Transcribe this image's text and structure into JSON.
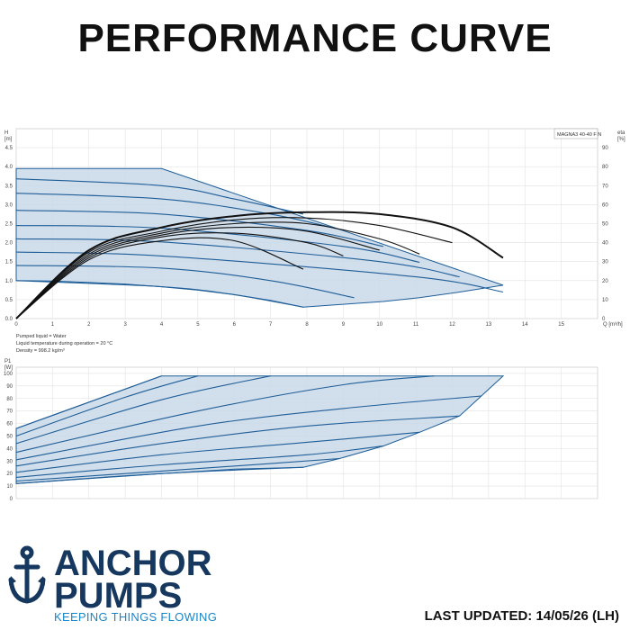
{
  "page": {
    "title": "PERFORMANCE CURVE",
    "last_updated": "LAST UPDATED: 14/05/26 (LH)"
  },
  "brand": {
    "line1": "ANCHOR",
    "line2": "PUMPS",
    "tagline": "KEEPING THINGS FLOWING",
    "primary_color": "#16385f",
    "accent_color": "#1a86c8"
  },
  "fluid_info": {
    "line1": "Pumped liquid = Water",
    "line2": "Liquid temperature during operation = 20 °C",
    "line3": "Density = 998.2 kg/m³"
  },
  "colors": {
    "curve": "#1f5e98",
    "fill": "#c9d8e8",
    "efficiency": "#111111",
    "grid": "#e2e2e2"
  },
  "chart_data": [
    {
      "type": "line",
      "name": "head",
      "model_label": "MAGNA3 40-40 F N",
      "y_axis_label": [
        "H",
        "[m]"
      ],
      "y2_axis_label": [
        "eta",
        "[%]"
      ],
      "x_axis_label": "Q [m³/h]",
      "xlim": [
        0,
        16
      ],
      "ylim": [
        0,
        5
      ],
      "y2lim": [
        0,
        100
      ],
      "x_ticks": [
        0,
        1,
        2,
        3,
        4,
        5,
        6,
        7,
        8,
        9,
        10,
        11,
        12,
        13,
        14,
        15
      ],
      "y_ticks": [
        0.0,
        0.5,
        1.0,
        1.5,
        2.0,
        2.5,
        3.0,
        3.5,
        4.0,
        4.5
      ],
      "y2_ticks": [
        0,
        10,
        20,
        30,
        40,
        50,
        60,
        70,
        80,
        90
      ],
      "grid": true,
      "envelope_max": [
        [
          0,
          3.95
        ],
        [
          4,
          3.95
        ],
        [
          13.4,
          0.88
        ]
      ],
      "envelope_min": [
        [
          0,
          1.0
        ],
        [
          1,
          0.99
        ],
        [
          2,
          0.95
        ],
        [
          3,
          0.91
        ],
        [
          4,
          0.84
        ],
        [
          5,
          0.75
        ],
        [
          6,
          0.63
        ],
        [
          7,
          0.48
        ],
        [
          7.9,
          0.3
        ],
        [
          8.9,
          0.37
        ],
        [
          10.1,
          0.45
        ],
        [
          11.1,
          0.55
        ],
        [
          12.2,
          0.7
        ],
        [
          13.4,
          0.88
        ]
      ],
      "series": [
        {
          "x": [
            0,
            4.0,
            6.0,
            7.9
          ],
          "y": [
            3.68,
            3.5,
            3.15,
            2.75
          ]
        },
        {
          "x": [
            0,
            4.0,
            7.0,
            8.9
          ],
          "y": [
            3.3,
            3.15,
            2.75,
            2.35
          ]
        },
        {
          "x": [
            0,
            4.0,
            8.0,
            10.1
          ],
          "y": [
            2.85,
            2.75,
            2.32,
            1.9
          ]
        },
        {
          "x": [
            0,
            4.0,
            9.0,
            11.1
          ],
          "y": [
            2.45,
            2.38,
            1.9,
            1.48
          ]
        },
        {
          "x": [
            0,
            4.0,
            10.0,
            12.2
          ],
          "y": [
            2.1,
            2.02,
            1.5,
            1.1
          ]
        },
        {
          "x": [
            0,
            4.0,
            11.0,
            13.4
          ],
          "y": [
            1.75,
            1.65,
            1.1,
            0.7
          ]
        },
        {
          "x": [
            0,
            4.0,
            7.0,
            9.3
          ],
          "y": [
            1.4,
            1.33,
            1.0,
            0.55
          ]
        },
        {
          "x": [
            0,
            4.0,
            6.0,
            7.9
          ],
          "y": [
            1.0,
            0.84,
            0.63,
            0.3
          ]
        }
      ],
      "efficiency_series": [
        {
          "x": [
            0,
            2.0,
            4.0,
            6.0,
            8.0,
            10.0,
            12.0,
            13.4
          ],
          "y": [
            0,
            36,
            48,
            54,
            56,
            55,
            48,
            32
          ]
        },
        {
          "x": [
            0,
            2.0,
            4.0,
            6.0,
            8.0,
            10.0,
            12.0
          ],
          "y": [
            0,
            35,
            46,
            52,
            53,
            49,
            40
          ]
        },
        {
          "x": [
            0,
            2.0,
            4.0,
            6.0,
            8.0,
            10.0,
            11.1
          ],
          "y": [
            0,
            34,
            45,
            50,
            50,
            42,
            34
          ]
        },
        {
          "x": [
            0,
            2.0,
            4.0,
            6.0,
            8.0,
            10.0
          ],
          "y": [
            0,
            33,
            44,
            48,
            46,
            36
          ]
        },
        {
          "x": [
            0,
            2.0,
            4.0,
            6.0,
            8.0,
            9.0
          ],
          "y": [
            0,
            32,
            43,
            45,
            40,
            33
          ]
        },
        {
          "x": [
            0,
            2.0,
            4.0,
            6.0,
            7.9
          ],
          "y": [
            0,
            31,
            41,
            41,
            26
          ]
        }
      ]
    },
    {
      "type": "line",
      "name": "power",
      "y_axis_label": [
        "P1",
        "[W]"
      ],
      "xlim": [
        0,
        16
      ],
      "ylim": [
        0,
        105
      ],
      "x_ticks": [
        0,
        1,
        2,
        3,
        4,
        5,
        6,
        7,
        8,
        9,
        10,
        11,
        12,
        13,
        14,
        15
      ],
      "y_ticks": [
        0,
        10,
        20,
        30,
        40,
        50,
        60,
        70,
        80,
        90,
        100
      ],
      "grid": true,
      "envelope_max": [
        [
          0,
          56
        ],
        [
          4,
          98
        ],
        [
          13.4,
          98
        ]
      ],
      "envelope_min": [
        [
          0,
          12
        ],
        [
          2,
          16
        ],
        [
          4,
          20
        ],
        [
          6,
          23.5
        ],
        [
          7.9,
          25
        ],
        [
          8.9,
          32
        ],
        [
          10.1,
          42
        ],
        [
          11.1,
          53
        ],
        [
          12.2,
          66
        ],
        [
          12.8,
          82
        ],
        [
          13.4,
          98
        ]
      ],
      "series": [
        {
          "x": [
            0,
            2.0,
            4.0
          ],
          "y": [
            56,
            77,
            98
          ]
        },
        {
          "x": [
            0,
            3.0,
            5.0
          ],
          "y": [
            50,
            81,
            98
          ]
        },
        {
          "x": [
            0,
            4.0,
            7.0
          ],
          "y": [
            44,
            79,
            98
          ]
        },
        {
          "x": [
            0,
            5.0,
            9.0,
            11.5
          ],
          "y": [
            37,
            70,
            91,
            98
          ]
        },
        {
          "x": [
            0,
            5.0,
            9.0,
            12.8
          ],
          "y": [
            31,
            58,
            72,
            82
          ]
        },
        {
          "x": [
            0,
            4.0,
            8.0,
            12.2
          ],
          "y": [
            26,
            44,
            58,
            66
          ]
        },
        {
          "x": [
            0,
            4.0,
            8.0,
            11.1
          ],
          "y": [
            21,
            35,
            45,
            53
          ]
        },
        {
          "x": [
            0,
            4.0,
            8.0,
            10.1
          ],
          "y": [
            17,
            27,
            35,
            42
          ]
        },
        {
          "x": [
            0,
            4.0,
            7.0,
            8.9
          ],
          "y": [
            14,
            22,
            28,
            32
          ]
        },
        {
          "x": [
            0,
            4.0,
            7.9
          ],
          "y": [
            12,
            20,
            25
          ]
        }
      ]
    }
  ]
}
